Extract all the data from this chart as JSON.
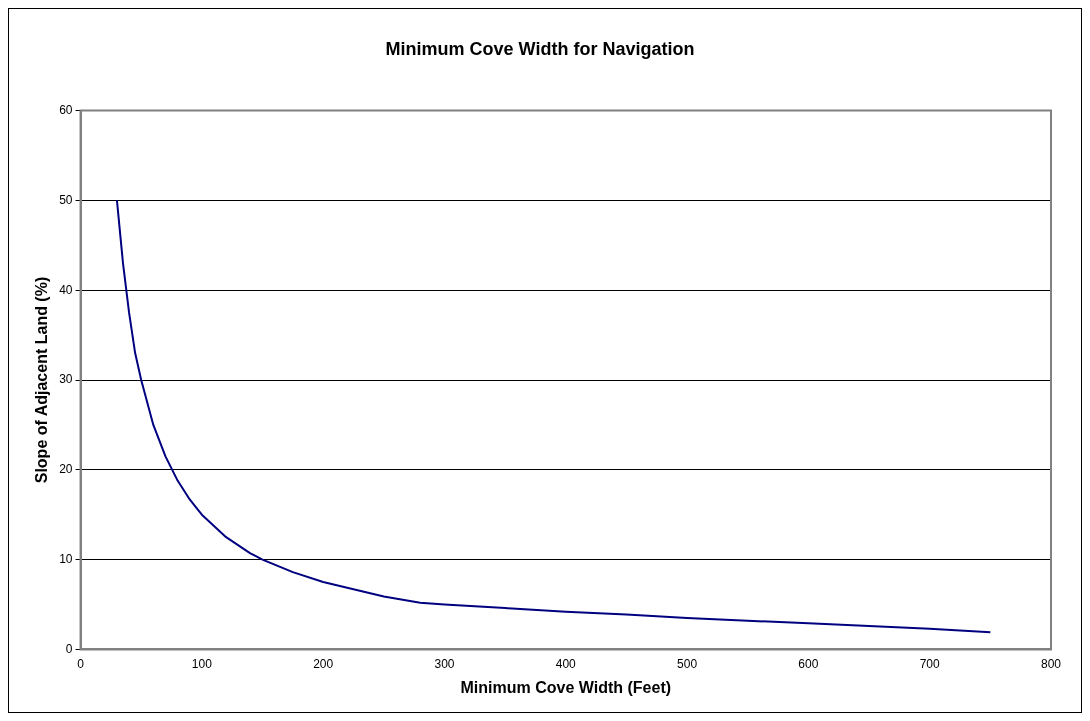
{
  "chart_data": {
    "type": "line",
    "title": "Minimum Cove Width for Navigation",
    "xlabel": "Minimum Cove Width (Feet)",
    "ylabel": "Slope of Adjacent Land (%)",
    "series": [
      {
        "color": "#000080",
        "x": [
          30,
          35,
          40,
          45,
          50,
          60,
          70,
          80,
          90,
          100,
          120,
          140,
          150,
          175,
          200,
          225,
          250,
          280,
          300,
          350,
          400,
          450,
          500,
          550,
          600,
          650,
          700,
          750
        ],
        "values": [
          50,
          43,
          37.5,
          33,
          30,
          25,
          21.5,
          18.8,
          16.7,
          15,
          12.5,
          10.7,
          10,
          8.6,
          7.5,
          6.7,
          5.9,
          5.2,
          5,
          4.6,
          4.2,
          3.9,
          3.5,
          3.2,
          2.9,
          2.6,
          2.3,
          1.9
        ]
      }
    ],
    "xlim": [
      0,
      800
    ],
    "xticks": [
      0,
      100,
      200,
      300,
      400,
      500,
      600,
      700,
      800
    ],
    "ylim": [
      0,
      60
    ],
    "yticks": [
      0,
      10,
      20,
      30,
      40,
      50,
      60
    ],
    "grid": "y",
    "legend": false,
    "marker": "none",
    "line_style": "solid"
  }
}
